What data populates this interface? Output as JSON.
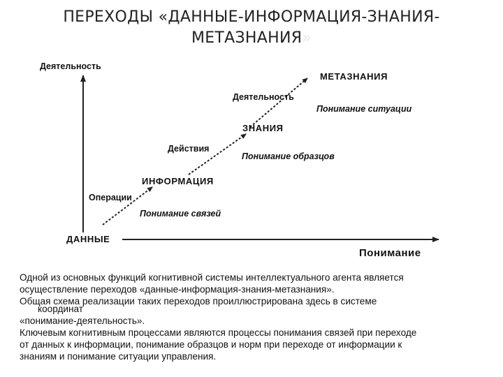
{
  "title": {
    "line1": "ПЕРЕХОДЫ «ДАННЫЕ-ИНФОРМАЦИЯ-ЗНАНИЯ-",
    "line2": "МЕТАЗНАНИЯ",
    "line2_tail": "»"
  },
  "diagram": {
    "y_axis_label": "Деятельность",
    "x_axis_label": "Понимание",
    "origin_label": "ДАННЫЕ",
    "levels": {
      "information": "ИНФОРМАЦИЯ",
      "knowledge": "ЗНАНИЯ",
      "metaknowledge": "МЕТАЗНАНИЯ"
    },
    "activities": {
      "operations": "Операции",
      "actions": "Действия",
      "activity": "Деятельность"
    },
    "understanding": {
      "relations": "Понимание связей",
      "patterns": "Понимание образцов",
      "situation": "Понимание ситуации"
    }
  },
  "body_text": {
    "line1": "Одной из основных функций когнитивной системы интеллектуального агента является",
    "line2": "осуществление переходов «данные-информация-знания-метазнания».",
    "line3": "Общая схема реализации таких переходов проиллюстрирована здесь в системе",
    "line4": "координат",
    "line5": "«понимание-деятельность».",
    "line6": "Ключевым когнитивным процессами являются процессы понимания связей при переходе",
    "line7": "от данных к информации, понимание образцов и норм при переходе от информации к",
    "line8": "знаниям  и  понимание ситуации управления."
  },
  "colors": {
    "text": "#111111",
    "title_tail": "#e6e6e6",
    "lines": "#222222"
  }
}
